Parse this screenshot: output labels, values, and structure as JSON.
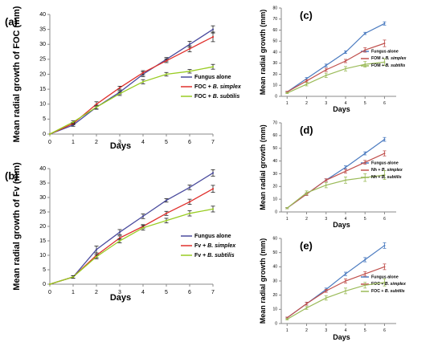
{
  "chart_data": [
    {
      "panel": "(a)",
      "type": "line",
      "x": [
        0,
        1,
        2,
        3,
        4,
        5,
        6,
        7
      ],
      "xlabel": "Days",
      "ylabel": "Mean radial growth of FOC (mm)",
      "ylim": [
        0,
        40
      ],
      "yticks": [
        0,
        5,
        10,
        15,
        20,
        25,
        30,
        35,
        40
      ],
      "legend_position": "right",
      "series": [
        {
          "name": "Fungus alone",
          "color": "#4b4c9e",
          "values": [
            0,
            3,
            9,
            14,
            20,
            25,
            30,
            35
          ],
          "errors": [
            0,
            0.4,
            0.7,
            0.6,
            0.8,
            0.6,
            1.0,
            1.2
          ]
        },
        {
          "name": "FOC + B. simplex",
          "color": "#e0302c",
          "values": [
            0,
            3.5,
            10,
            15.5,
            20.5,
            24.5,
            28.5,
            32.5
          ],
          "errors": [
            0,
            0.4,
            0.8,
            0.5,
            0.7,
            0.6,
            1.0,
            1.6
          ]
        },
        {
          "name": "FOC + B. subtilis",
          "color": "#99cc22",
          "values": [
            0,
            4,
            9,
            13.5,
            17.5,
            20,
            21,
            22.5
          ],
          "errors": [
            0,
            0.4,
            0.6,
            0.6,
            0.7,
            0.6,
            0.6,
            0.8
          ]
        }
      ]
    },
    {
      "panel": "(b)",
      "type": "line",
      "x": [
        0,
        1,
        2,
        3,
        4,
        5,
        6,
        7
      ],
      "xlabel": "Days",
      "ylabel": "Mean radial growth of Fv (mm)",
      "ylim": [
        0,
        40
      ],
      "yticks": [
        0,
        5,
        10,
        15,
        20,
        25,
        30,
        35,
        40
      ],
      "legend_position": "right",
      "series": [
        {
          "name": "Fungus alone",
          "color": "#4b4c9e",
          "values": [
            0,
            2.5,
            12,
            18,
            23.5,
            29,
            33.5,
            38.5
          ],
          "errors": [
            0,
            0.4,
            1.2,
            0.9,
            0.8,
            0.6,
            0.8,
            1.1
          ]
        },
        {
          "name": "Fv + B. simplex",
          "color": "#e0302c",
          "values": [
            0,
            2.5,
            10,
            16,
            20,
            24.5,
            28.5,
            33
          ],
          "errors": [
            0,
            0.4,
            0.8,
            0.7,
            0.6,
            0.7,
            0.9,
            1.2
          ]
        },
        {
          "name": "Fv + B. subtilis",
          "color": "#99cc22",
          "values": [
            0,
            2.5,
            9.5,
            15,
            19.5,
            22,
            24.5,
            26
          ],
          "errors": [
            0,
            0.4,
            0.7,
            0.7,
            0.8,
            0.8,
            0.9,
            1.0
          ]
        }
      ]
    },
    {
      "panel": "(c)",
      "type": "line",
      "x": [
        1,
        2,
        3,
        4,
        5,
        6
      ],
      "xlabel": "Days",
      "ylabel": "Mean radial growth (mm)",
      "ylim": [
        0,
        80
      ],
      "yticks": [
        0,
        10,
        20,
        30,
        40,
        50,
        60,
        70,
        80
      ],
      "legend_position": "right",
      "series": [
        {
          "name": "Fungus alone",
          "color": "#4b7bc0",
          "values": [
            4,
            16,
            28,
            40,
            57,
            66
          ],
          "errors": [
            0.5,
            1,
            1.2,
            1.2,
            1,
            1.5
          ]
        },
        {
          "name": "FOM + B. simplex",
          "color": "#c0504d",
          "values": [
            4,
            14,
            24,
            32,
            42,
            48
          ],
          "errors": [
            0.5,
            1,
            1.5,
            1.5,
            2,
            3
          ]
        },
        {
          "name": "FOM + B. subtilis",
          "color": "#9bbb59",
          "values": [
            3,
            11,
            19,
            25,
            29,
            31
          ],
          "errors": [
            0.5,
            1.5,
            2,
            2,
            2.5,
            3
          ]
        }
      ]
    },
    {
      "panel": "(d)",
      "type": "line",
      "x": [
        1,
        2,
        3,
        4,
        5,
        6
      ],
      "xlabel": "Days",
      "ylabel": "Mean radial growth (mm)",
      "ylim": [
        0,
        70
      ],
      "yticks": [
        0,
        10,
        20,
        30,
        40,
        50,
        60,
        70
      ],
      "legend_position": "right",
      "series": [
        {
          "name": "Fungus alone",
          "color": "#4b7bc0",
          "values": [
            3,
            14,
            25,
            35,
            46,
            57
          ],
          "errors": [
            0.5,
            1,
            1,
            1.2,
            1.2,
            1.5
          ]
        },
        {
          "name": "Nh + B. simplex",
          "color": "#c0504d",
          "values": [
            3,
            14,
            25,
            32,
            39,
            46
          ],
          "errors": [
            0.5,
            1,
            1,
            1.5,
            1.5,
            2
          ]
        },
        {
          "name": "Nh + B. subtilis",
          "color": "#9bbb59",
          "values": [
            3,
            15,
            21,
            25,
            27,
            29
          ],
          "errors": [
            0.5,
            1.5,
            2,
            2.5,
            3,
            3.5
          ]
        }
      ]
    },
    {
      "panel": "(e)",
      "type": "line",
      "x": [
        1,
        2,
        3,
        4,
        5,
        6
      ],
      "xlabel": "Days",
      "ylabel": "Mean radial growth (mm)",
      "ylim": [
        0,
        60
      ],
      "yticks": [
        0,
        10,
        20,
        30,
        40,
        50,
        60
      ],
      "legend_position": "right",
      "series": [
        {
          "name": "Fungus alone",
          "color": "#4b7bc0",
          "values": [
            4,
            14,
            24,
            35,
            45,
            55
          ],
          "errors": [
            0.5,
            1,
            1,
            1.2,
            1.5,
            2
          ]
        },
        {
          "name": "FOC + B. simplex",
          "color": "#c0504d",
          "values": [
            4,
            14,
            23,
            30,
            35,
            40
          ],
          "errors": [
            0.5,
            1,
            1,
            1.5,
            1.5,
            2
          ]
        },
        {
          "name": "FOC + B. subtilis",
          "color": "#9bbb59",
          "values": [
            3,
            11,
            18,
            23,
            27,
            29
          ],
          "errors": [
            0.5,
            1,
            1.5,
            2,
            2,
            2.5
          ]
        }
      ]
    }
  ]
}
